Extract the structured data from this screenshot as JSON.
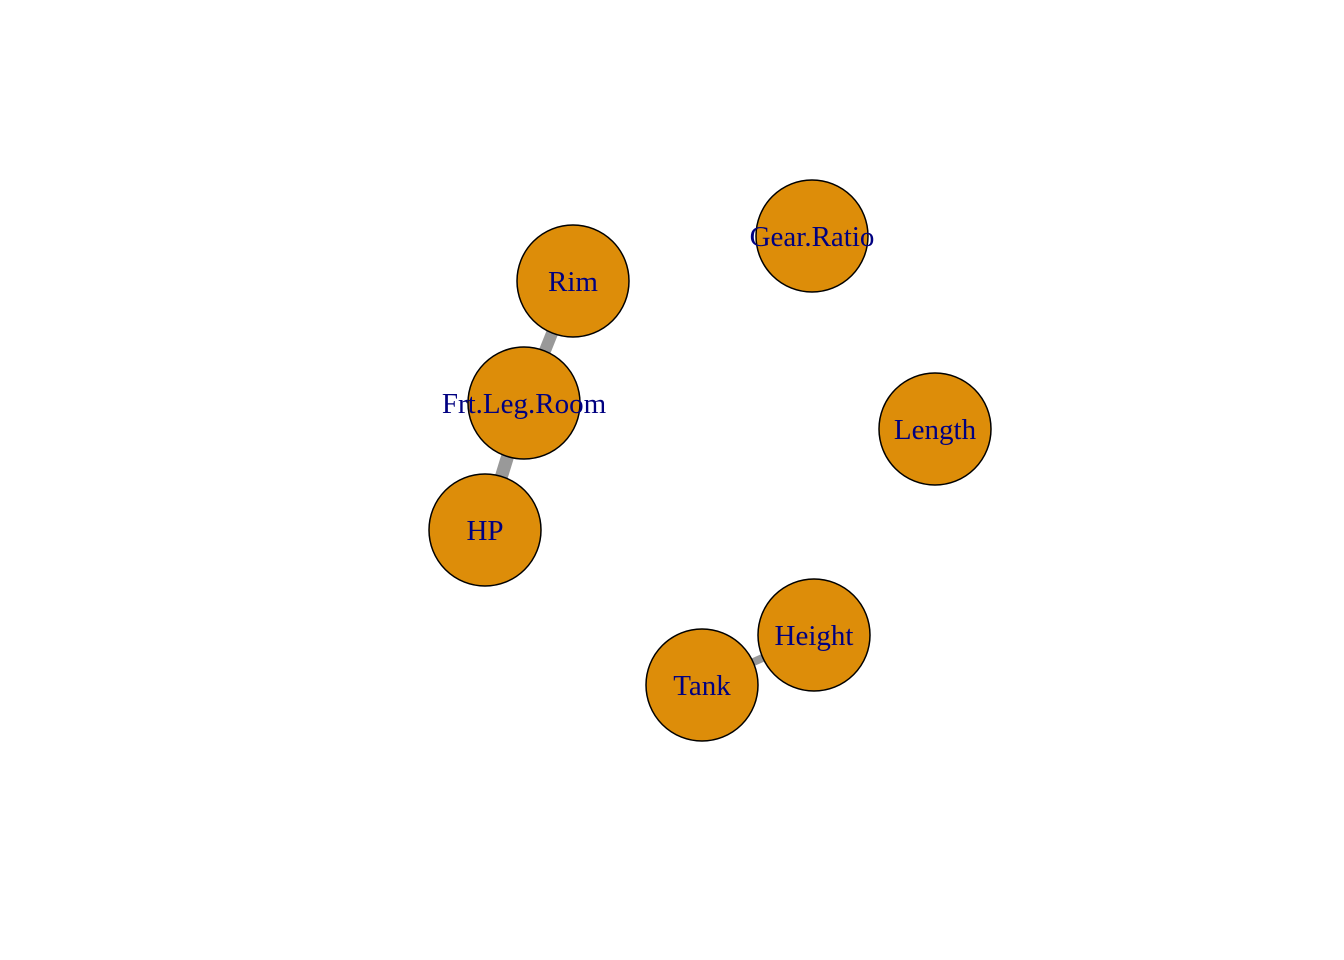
{
  "graph": {
    "colors": {
      "node_fill": "#dd8d09",
      "node_stroke": "#000000",
      "label": "#000080",
      "edge": "#999999"
    },
    "nodes": [
      {
        "id": "Rim",
        "label": "Rim"
      },
      {
        "id": "Frt.Leg.Room",
        "label": "Frt.Leg.Room"
      },
      {
        "id": "HP",
        "label": "HP"
      },
      {
        "id": "Gear.Ratio",
        "label": "Gear.Ratio"
      },
      {
        "id": "Length",
        "label": "Length"
      },
      {
        "id": "Height",
        "label": "Height"
      },
      {
        "id": "Tank",
        "label": "Tank"
      }
    ],
    "edges": [
      {
        "from": "Rim",
        "to": "Frt.Leg.Room"
      },
      {
        "from": "Frt.Leg.Room",
        "to": "HP"
      },
      {
        "from": "Height",
        "to": "Tank"
      }
    ]
  }
}
